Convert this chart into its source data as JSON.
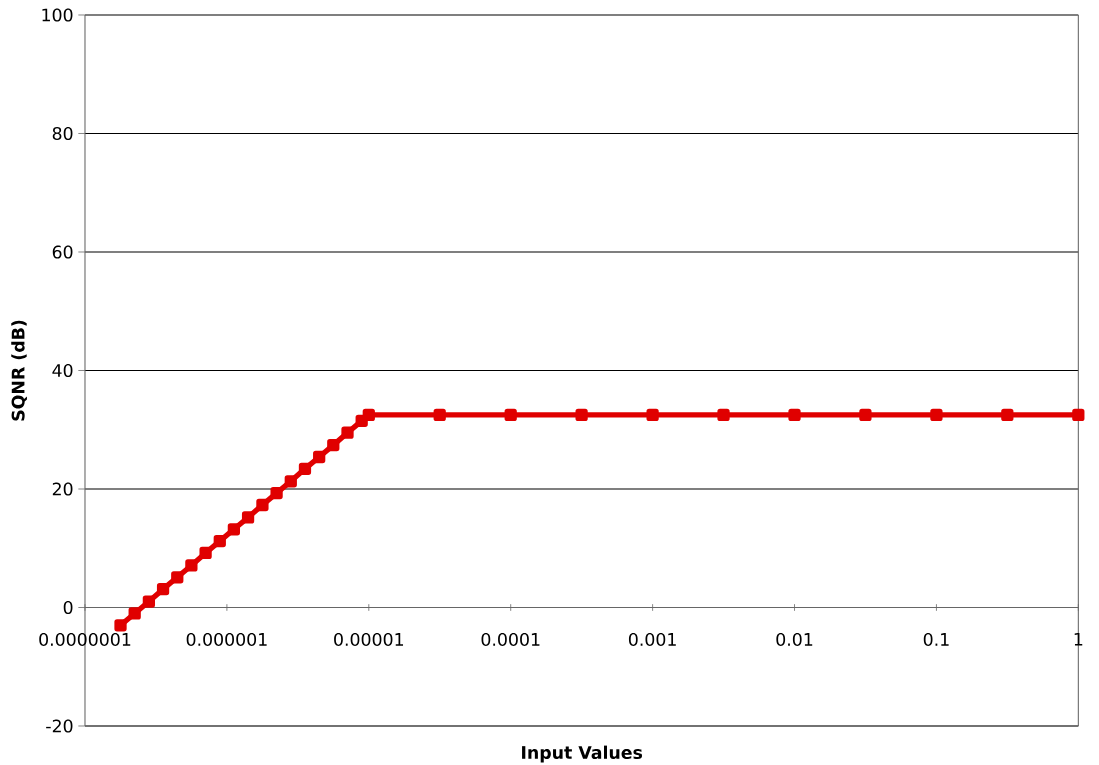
{
  "chart_data": {
    "type": "line",
    "xlabel": "Input Values",
    "ylabel": "SQNR (dB)",
    "x": [
      1.78e-07,
      2.24e-07,
      2.82e-07,
      3.55e-07,
      4.47e-07,
      5.62e-07,
      7.08e-07,
      8.91e-07,
      1.12e-06,
      1.41e-06,
      1.78e-06,
      2.24e-06,
      2.82e-06,
      3.55e-06,
      4.47e-06,
      5.62e-06,
      7.08e-06,
      8.91e-06,
      1e-05,
      3.16e-05,
      0.0001,
      0.000316,
      0.001,
      0.00316,
      0.01,
      0.0316,
      0.1,
      0.316,
      1
    ],
    "values": [
      -3.0,
      -1.0,
      1.0,
      3.1,
      5.1,
      7.1,
      9.2,
      11.2,
      13.2,
      15.2,
      17.3,
      19.3,
      21.3,
      23.4,
      25.4,
      27.4,
      29.5,
      31.5,
      32.5,
      32.5,
      32.5,
      32.5,
      32.5,
      32.5,
      32.5,
      32.5,
      32.5,
      32.5,
      32.5
    ],
    "color": "#e00000",
    "marker": "square",
    "line_style": "solid",
    "log": "x",
    "grid": "y",
    "xlim": [
      1e-07,
      1
    ],
    "xticks": [
      {
        "value": 1e-07,
        "label": "0.0000001"
      },
      {
        "value": 1e-06,
        "label": "0.000001"
      },
      {
        "value": 1e-05,
        "label": "0.00001"
      },
      {
        "value": 0.0001,
        "label": "0.0001"
      },
      {
        "value": 0.001,
        "label": "0.001"
      },
      {
        "value": 0.01,
        "label": "0.01"
      },
      {
        "value": 0.1,
        "label": "0.1"
      },
      {
        "value": 1,
        "label": "1"
      }
    ],
    "ylim": [
      -20,
      100
    ],
    "yticks": [
      -20,
      0,
      20,
      40,
      60,
      80,
      100
    ]
  }
}
